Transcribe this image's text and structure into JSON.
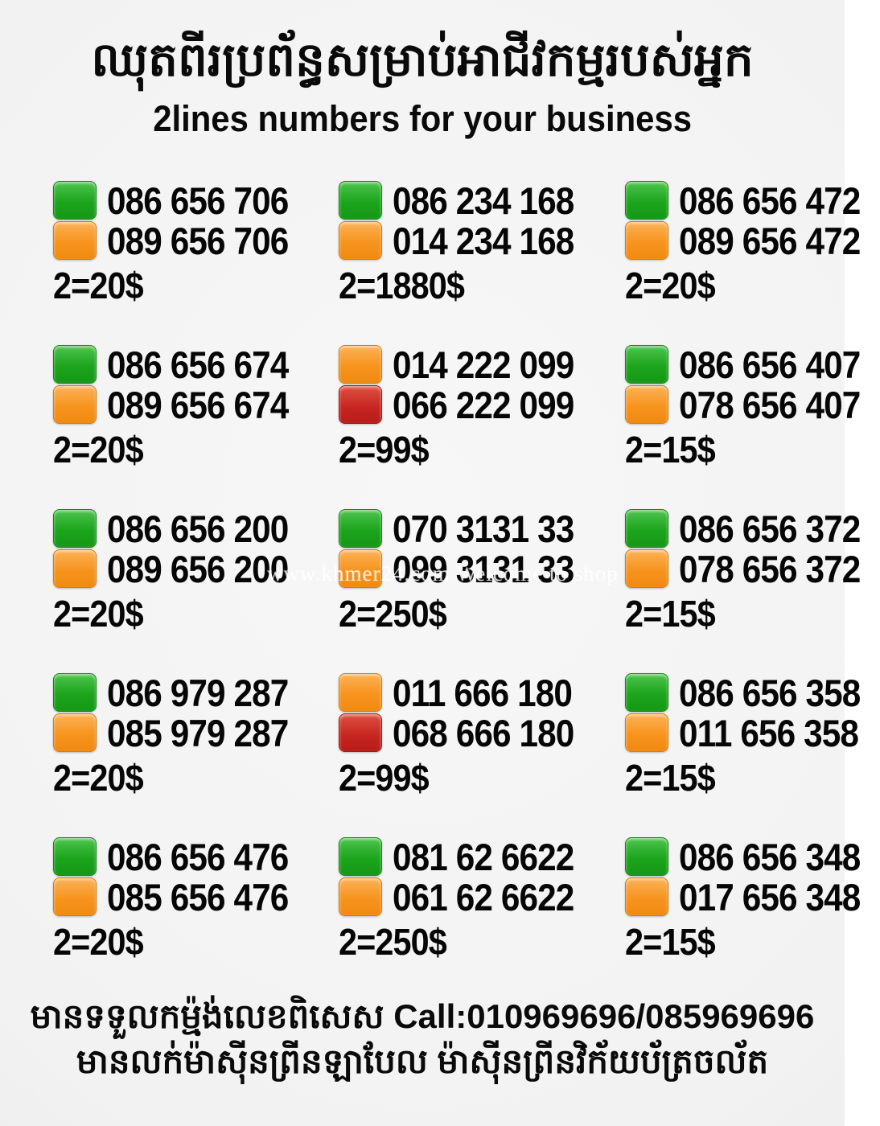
{
  "header": {
    "title_khmer": "ឈុតពីរប្រព័ន្ធសម្រាប់អាជីវកម្មរបស់អ្នក",
    "subtitle": "2lines numbers for your business"
  },
  "watermark": "www.khmer24.com Welcome to shop",
  "colors": {
    "green": "#1ca51c",
    "orange": "#f7941e",
    "red": "#c62420",
    "background": "#f2f2f2",
    "text": "#060606"
  },
  "grid": {
    "cards": [
      {
        "lines": [
          {
            "color": "green",
            "number": "086 656 706"
          },
          {
            "color": "orange",
            "number": "089 656 706"
          }
        ],
        "price": "2=20$"
      },
      {
        "lines": [
          {
            "color": "green",
            "number": "086 234 168"
          },
          {
            "color": "orange",
            "number": "014 234 168"
          }
        ],
        "price": "2=1880$"
      },
      {
        "lines": [
          {
            "color": "green",
            "number": "086 656 472"
          },
          {
            "color": "orange",
            "number": "089 656 472"
          }
        ],
        "price": "2=20$"
      },
      {
        "lines": [
          {
            "color": "green",
            "number": "086 656 674"
          },
          {
            "color": "orange",
            "number": "089 656 674"
          }
        ],
        "price": "2=20$"
      },
      {
        "lines": [
          {
            "color": "orange",
            "number": "014 222 099"
          },
          {
            "color": "red",
            "number": "066 222 099"
          }
        ],
        "price": "2=99$"
      },
      {
        "lines": [
          {
            "color": "green",
            "number": "086 656 407"
          },
          {
            "color": "orange",
            "number": "078 656 407"
          }
        ],
        "price": "2=15$"
      },
      {
        "lines": [
          {
            "color": "green",
            "number": "086 656 200"
          },
          {
            "color": "orange",
            "number": "089 656 200"
          }
        ],
        "price": "2=20$"
      },
      {
        "lines": [
          {
            "color": "green",
            "number": "070 3131 33"
          },
          {
            "color": "orange",
            "number": "099 3131 33"
          }
        ],
        "price": "2=250$"
      },
      {
        "lines": [
          {
            "color": "green",
            "number": "086 656 372"
          },
          {
            "color": "orange",
            "number": "078 656 372"
          }
        ],
        "price": "2=15$"
      },
      {
        "lines": [
          {
            "color": "green",
            "number": "086 979 287"
          },
          {
            "color": "orange",
            "number": "085 979 287"
          }
        ],
        "price": "2=20$"
      },
      {
        "lines": [
          {
            "color": "orange",
            "number": "011 666 180"
          },
          {
            "color": "red",
            "number": "068 666 180"
          }
        ],
        "price": "2=99$"
      },
      {
        "lines": [
          {
            "color": "green",
            "number": "086 656 358"
          },
          {
            "color": "orange",
            "number": "011 656 358"
          }
        ],
        "price": "2=15$"
      },
      {
        "lines": [
          {
            "color": "green",
            "number": "086 656 476"
          },
          {
            "color": "orange",
            "number": "085 656 476"
          }
        ],
        "price": "2=20$"
      },
      {
        "lines": [
          {
            "color": "green",
            "number": "081 62 6622"
          },
          {
            "color": "orange",
            "number": "061 62 6622"
          }
        ],
        "price": "2=250$"
      },
      {
        "lines": [
          {
            "color": "green",
            "number": "086 656 348"
          },
          {
            "color": "orange",
            "number": "017 656 348"
          }
        ],
        "price": "2=15$"
      }
    ]
  },
  "footer": {
    "line1_khmer": "មានទទួលកម្ម៉ង់លេខពិសេស",
    "line1_call": "Call:010969696/085969696",
    "line2_khmer": "មានលក់ម៉ាស៊ីនព្រីនឡាបែល ម៉ាស៊ីនព្រីនវិក័យប័ត្រចល័ត"
  }
}
